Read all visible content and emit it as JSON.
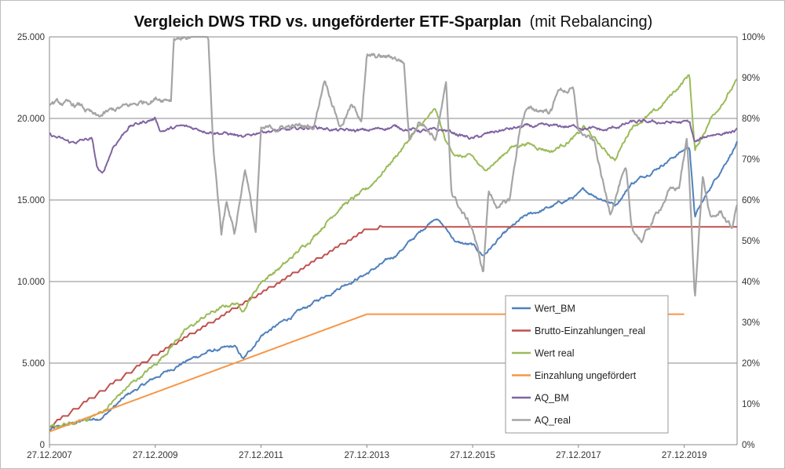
{
  "chart_data": {
    "type": "line",
    "title": "Vergleich DWS TRD vs. ungeförderter ETF-Sparplan",
    "subtitle": "(mit Rebalancing)",
    "x_tick_labels": [
      "27.12.2007",
      "27.12.2009",
      "27.12.2011",
      "27.12.2013",
      "27.12.2015",
      "27.12.2017",
      "27.12.2019"
    ],
    "x_range": [
      2008.0,
      2021.0
    ],
    "y_left": {
      "range": [
        0,
        25000
      ],
      "tick_values": [
        0,
        5000,
        10000,
        15000,
        20000,
        25000
      ],
      "tick_labels": [
        "0",
        "5.000",
        "10.000",
        "15.000",
        "20.000",
        "25.000"
      ]
    },
    "y_right": {
      "range": [
        0,
        100
      ],
      "tick_values": [
        0,
        10,
        20,
        30,
        40,
        50,
        60,
        70,
        80,
        90,
        100
      ],
      "tick_labels": [
        "0%",
        "10%",
        "20%",
        "30%",
        "40%",
        "50%",
        "60%",
        "70%",
        "80%",
        "90%",
        "100%"
      ]
    },
    "gridlines": "horizontal",
    "legend_position": "inside-bottom-right",
    "series": [
      {
        "name": "Wert_BM",
        "axis": "left",
        "color": "#4f81bd",
        "points": [
          [
            2008.0,
            900
          ],
          [
            2008.5,
            1350
          ],
          [
            2009.0,
            1700
          ],
          [
            2009.5,
            3100
          ],
          [
            2010.0,
            4100
          ],
          [
            2010.5,
            5000
          ],
          [
            2011.0,
            5700
          ],
          [
            2011.5,
            6000
          ],
          [
            2011.67,
            5200
          ],
          [
            2012.0,
            6700
          ],
          [
            2012.5,
            7700
          ],
          [
            2013.0,
            8700
          ],
          [
            2013.5,
            9700
          ],
          [
            2014.0,
            10500
          ],
          [
            2014.5,
            11500
          ],
          [
            2015.0,
            13000
          ],
          [
            2015.3,
            14000
          ],
          [
            2015.5,
            13200
          ],
          [
            2015.7,
            12400
          ],
          [
            2016.0,
            12200
          ],
          [
            2016.2,
            11600
          ],
          [
            2016.5,
            12600
          ],
          [
            2016.7,
            13200
          ],
          [
            2017.0,
            14000
          ],
          [
            2017.5,
            14600
          ],
          [
            2018.0,
            15300
          ],
          [
            2018.1,
            15600
          ],
          [
            2018.5,
            15000
          ],
          [
            2018.7,
            14700
          ],
          [
            2019.0,
            16000
          ],
          [
            2019.5,
            17000
          ],
          [
            2020.1,
            18300
          ],
          [
            2020.2,
            14000
          ],
          [
            2020.5,
            15800
          ],
          [
            2021.0,
            18500
          ]
        ]
      },
      {
        "name": "Brutto-Einzahlungen_real",
        "axis": "left",
        "color": "#c0504d",
        "points": [
          [
            2008.0,
            1100
          ],
          [
            2010.0,
            5500
          ],
          [
            2012.0,
            9300
          ],
          [
            2014.0,
            13200
          ],
          [
            2014.3,
            13350
          ],
          [
            2021.0,
            13350
          ]
        ]
      },
      {
        "name": "Wert real",
        "axis": "left",
        "color": "#9bbb59",
        "points": [
          [
            2008.0,
            1000
          ],
          [
            2008.5,
            1300
          ],
          [
            2009.0,
            2000
          ],
          [
            2009.5,
            3600
          ],
          [
            2010.0,
            4900
          ],
          [
            2010.5,
            6800
          ],
          [
            2011.0,
            8000
          ],
          [
            2011.5,
            8700
          ],
          [
            2011.67,
            8300
          ],
          [
            2012.0,
            10000
          ],
          [
            2012.5,
            11200
          ],
          [
            2013.0,
            12800
          ],
          [
            2013.5,
            14600
          ],
          [
            2014.0,
            15600
          ],
          [
            2014.5,
            17500
          ],
          [
            2015.0,
            19500
          ],
          [
            2015.3,
            20500
          ],
          [
            2015.5,
            18500
          ],
          [
            2015.7,
            17700
          ],
          [
            2016.0,
            17600
          ],
          [
            2016.2,
            16800
          ],
          [
            2016.5,
            17500
          ],
          [
            2016.7,
            18200
          ],
          [
            2017.0,
            18500
          ],
          [
            2017.5,
            18000
          ],
          [
            2018.0,
            19000
          ],
          [
            2018.1,
            19500
          ],
          [
            2018.5,
            18000
          ],
          [
            2018.7,
            17500
          ],
          [
            2019.0,
            19500
          ],
          [
            2019.5,
            20500
          ],
          [
            2020.1,
            22700
          ],
          [
            2020.2,
            18000
          ],
          [
            2020.5,
            20000
          ],
          [
            2021.0,
            22300
          ]
        ]
      },
      {
        "name": "Einzahlung ungefördert",
        "axis": "left",
        "color": "#f79646",
        "points": [
          [
            2008.0,
            800
          ],
          [
            2010.0,
            3200
          ],
          [
            2012.0,
            5600
          ],
          [
            2014.0,
            8000
          ],
          [
            2020.0,
            8000
          ]
        ]
      },
      {
        "name": "AQ_BM",
        "axis": "right",
        "color": "#8064a2",
        "points": [
          [
            2008.0,
            76
          ],
          [
            2008.4,
            74
          ],
          [
            2008.8,
            75
          ],
          [
            2008.9,
            68
          ],
          [
            2009.0,
            66
          ],
          [
            2009.2,
            73
          ],
          [
            2009.5,
            78
          ],
          [
            2010.0,
            80
          ],
          [
            2010.1,
            77
          ],
          [
            2010.5,
            78
          ],
          [
            2011.0,
            77
          ],
          [
            2011.5,
            76
          ],
          [
            2011.67,
            75
          ],
          [
            2012.0,
            77
          ],
          [
            2012.5,
            77
          ],
          [
            2013.0,
            78
          ],
          [
            2013.5,
            77
          ],
          [
            2014.0,
            77
          ],
          [
            2014.5,
            78
          ],
          [
            2015.0,
            77
          ],
          [
            2015.5,
            77
          ],
          [
            2016.0,
            75
          ],
          [
            2016.5,
            77
          ],
          [
            2017.0,
            78
          ],
          [
            2017.5,
            78
          ],
          [
            2018.0,
            78
          ],
          [
            2018.5,
            77
          ],
          [
            2019.0,
            79
          ],
          [
            2019.5,
            79
          ],
          [
            2020.1,
            79
          ],
          [
            2020.2,
            74
          ],
          [
            2020.5,
            76
          ],
          [
            2021.0,
            77
          ]
        ]
      },
      {
        "name": "AQ_real",
        "axis": "right",
        "color": "#a5a5a5",
        "points": [
          [
            2008.0,
            84
          ],
          [
            2008.6,
            83
          ],
          [
            2008.9,
            80
          ],
          [
            2009.2,
            82
          ],
          [
            2009.5,
            83
          ],
          [
            2010.0,
            85
          ],
          [
            2010.3,
            85
          ],
          [
            2010.35,
            100
          ],
          [
            2011.0,
            100
          ],
          [
            2011.1,
            72
          ],
          [
            2011.25,
            52
          ],
          [
            2011.35,
            60
          ],
          [
            2011.5,
            52
          ],
          [
            2011.7,
            68
          ],
          [
            2011.9,
            52
          ],
          [
            2012.0,
            77
          ],
          [
            2012.5,
            78
          ],
          [
            2013.0,
            78
          ],
          [
            2013.2,
            90
          ],
          [
            2013.5,
            78
          ],
          [
            2013.7,
            83
          ],
          [
            2013.9,
            80
          ],
          [
            2014.0,
            95
          ],
          [
            2014.5,
            95
          ],
          [
            2014.7,
            94
          ],
          [
            2014.8,
            75
          ],
          [
            2015.0,
            80
          ],
          [
            2015.3,
            75
          ],
          [
            2015.5,
            88
          ],
          [
            2015.6,
            62
          ],
          [
            2015.8,
            57
          ],
          [
            2016.0,
            53
          ],
          [
            2016.2,
            42
          ],
          [
            2016.3,
            62
          ],
          [
            2016.5,
            58
          ],
          [
            2016.7,
            60
          ],
          [
            2016.9,
            78
          ],
          [
            2017.0,
            82
          ],
          [
            2017.2,
            82
          ],
          [
            2017.5,
            82
          ],
          [
            2017.6,
            87
          ],
          [
            2017.9,
            87
          ],
          [
            2018.0,
            77
          ],
          [
            2018.3,
            74
          ],
          [
            2018.5,
            62
          ],
          [
            2018.6,
            57
          ],
          [
            2018.8,
            65
          ],
          [
            2018.9,
            67
          ],
          [
            2019.0,
            53
          ],
          [
            2019.2,
            50
          ],
          [
            2019.5,
            57
          ],
          [
            2019.7,
            62
          ],
          [
            2019.9,
            63
          ],
          [
            2020.05,
            75
          ],
          [
            2020.1,
            64
          ],
          [
            2020.2,
            36
          ],
          [
            2020.35,
            66
          ],
          [
            2020.5,
            55
          ],
          [
            2020.7,
            57
          ],
          [
            2020.9,
            53
          ],
          [
            2021.0,
            59
          ]
        ]
      }
    ]
  }
}
